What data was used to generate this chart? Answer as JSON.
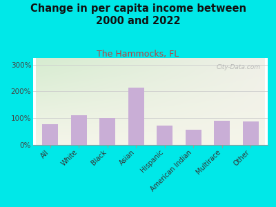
{
  "title": "Change in per capita income between\n2000 and 2022",
  "subtitle": "The Hammocks, FL",
  "categories": [
    "All",
    "White",
    "Black",
    "Asian",
    "Hispanic",
    "American Indian",
    "Multirace",
    "Other"
  ],
  "values": [
    78,
    110,
    100,
    215,
    72,
    57,
    90,
    87
  ],
  "bar_color": "#c9aed6",
  "title_fontsize": 10.5,
  "subtitle_fontsize": 9,
  "subtitle_color": "#b94040",
  "title_color": "#111111",
  "bg_outer": "#00e8e8",
  "ylim": [
    0,
    325
  ],
  "yticks": [
    0,
    100,
    200,
    300
  ],
  "ytick_labels": [
    "0%",
    "100%",
    "200%",
    "300%"
  ],
  "watermark": "City-Data.com",
  "grad_color_topleft": "#d6ecd0",
  "grad_color_topright": "#e8f0e0",
  "grad_color_bottom": "#f0f0e0"
}
